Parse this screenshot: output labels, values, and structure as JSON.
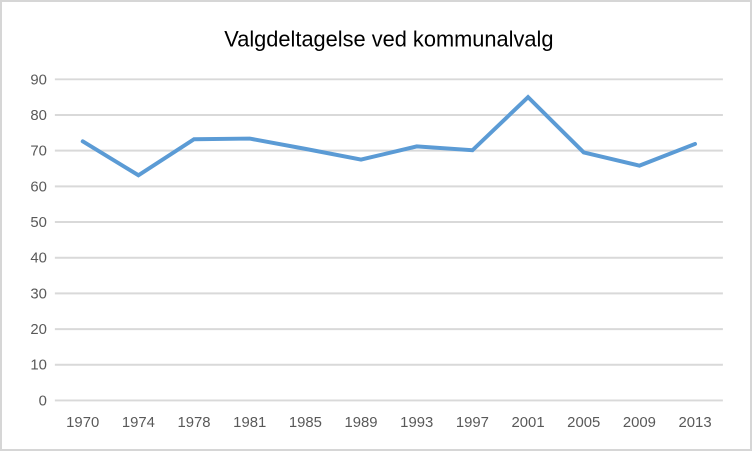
{
  "chart_data": {
    "type": "line",
    "title": "Valgdeltagelse ved kommunalvalg",
    "categories": [
      "1970",
      "1974",
      "1978",
      "1981",
      "1985",
      "1989",
      "1993",
      "1997",
      "2001",
      "2005",
      "2009",
      "2013"
    ],
    "series": [
      {
        "values": [
          72.6,
          63.1,
          73.2,
          73.4,
          70.5,
          67.5,
          71.2,
          70.1,
          85.0,
          69.5,
          65.8,
          71.9
        ]
      }
    ],
    "xlabel": "",
    "ylabel": "",
    "ylim": [
      0,
      90
    ],
    "yticks": [
      0,
      10,
      20,
      30,
      40,
      50,
      60,
      70,
      80,
      90
    ],
    "grid": true,
    "legend": "none",
    "colors": {
      "line": "#5B9BD5",
      "gridline": "#D9D9D9",
      "axis_line": "#D9D9D9",
      "text": "#595959",
      "border": "#D6D6D6",
      "background": "#FFFFFF"
    }
  }
}
